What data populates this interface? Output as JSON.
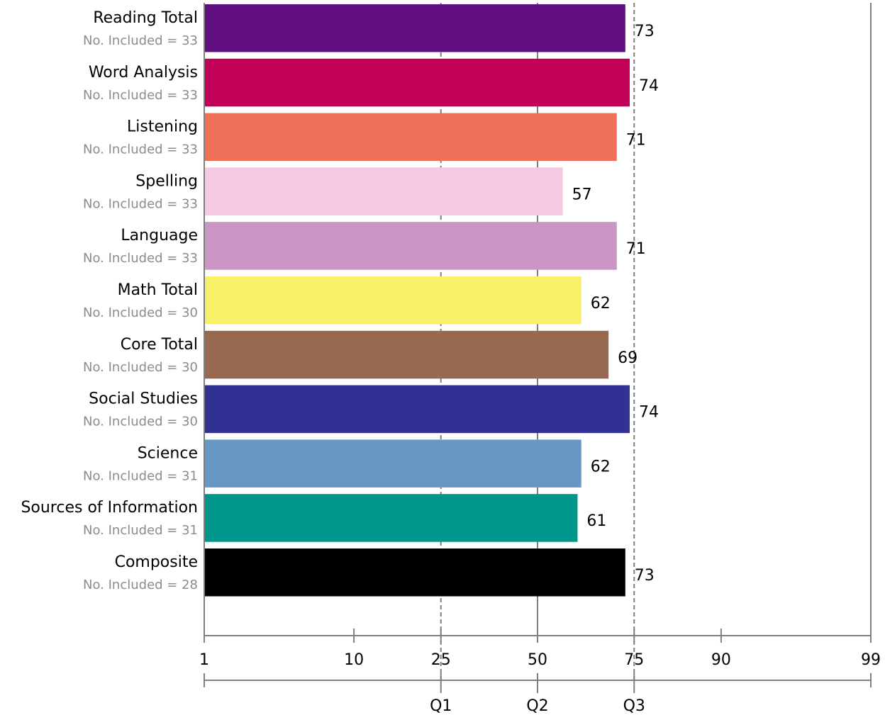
{
  "chart_data": {
    "type": "bar",
    "orientation": "horizontal",
    "count_prefix": "No. Included = ",
    "categories": [
      {
        "name": "Reading Total",
        "count": 33,
        "value": 73,
        "color": "#610f7f"
      },
      {
        "name": "Word Analysis",
        "count": 33,
        "value": 74,
        "color": "#c10058"
      },
      {
        "name": "Listening",
        "count": 33,
        "value": 71,
        "color": "#ef6f59"
      },
      {
        "name": "Spelling",
        "count": 33,
        "value": 57,
        "color": "#f5c9e2"
      },
      {
        "name": "Language",
        "count": 33,
        "value": 71,
        "color": "#cb95c5"
      },
      {
        "name": "Math Total",
        "count": 30,
        "value": 62,
        "color": "#f6f169"
      },
      {
        "name": "Core Total",
        "count": 30,
        "value": 69,
        "color": "#976a4f"
      },
      {
        "name": "Social Studies",
        "count": 30,
        "value": 74,
        "color": "#303193"
      },
      {
        "name": "Science",
        "count": 31,
        "value": 62,
        "color": "#6797c5"
      },
      {
        "name": "Sources of Information",
        "count": 31,
        "value": 61,
        "color": "#00968b"
      },
      {
        "name": "Composite",
        "count": 28,
        "value": 73,
        "color": "#000000"
      }
    ],
    "x_scale": "normal-curve percentile rank",
    "xlim": [
      1,
      99
    ],
    "x_ticks": [
      1,
      10,
      25,
      50,
      75,
      90,
      99
    ],
    "quartiles": [
      {
        "label": "Q1",
        "value": 25
      },
      {
        "label": "Q2",
        "value": 50
      },
      {
        "label": "Q3",
        "value": 75
      }
    ],
    "reference_lines": {
      "dashed": [
        25,
        75
      ],
      "solid": [
        50,
        99
      ]
    },
    "colors": {
      "axis": "#7f7f7f",
      "dashed_line": "#7f7f7f",
      "count_text": "#8c8c8c"
    }
  }
}
